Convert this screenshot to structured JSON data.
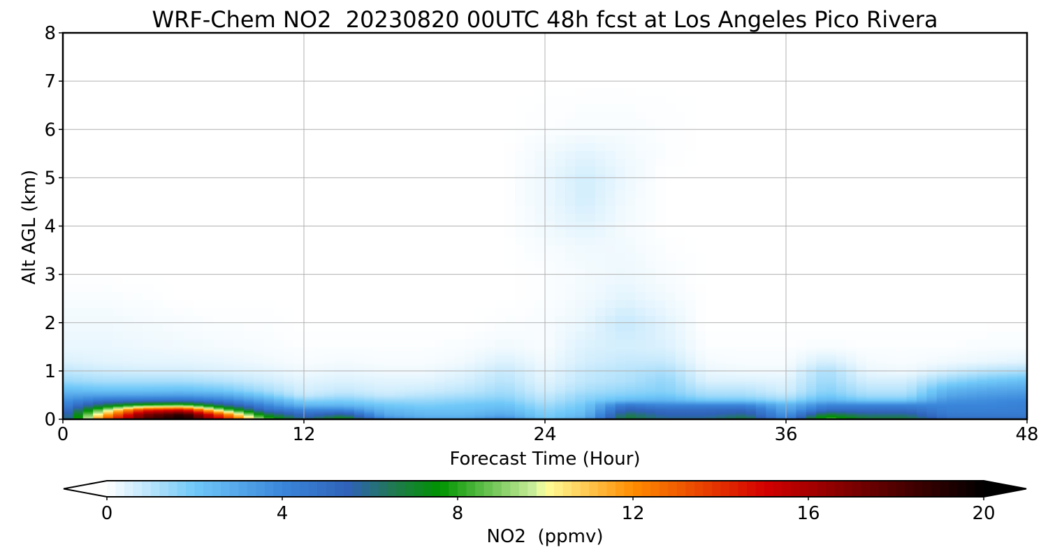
{
  "chart_data": {
    "type": "heatmap",
    "title": "WRF-Chem NO2  20230820 00UTC 48h fcst at Los Angeles Pico Rivera",
    "xlabel": "Forecast Time (Hour)",
    "ylabel": "Alt AGL (km)",
    "xlim": [
      0,
      48
    ],
    "ylim": [
      0,
      8
    ],
    "xticks": [
      0,
      12,
      24,
      36,
      48
    ],
    "yticks": [
      0,
      1,
      2,
      3,
      4,
      5,
      6,
      7,
      8
    ],
    "grid": true,
    "x": [
      0,
      2,
      4,
      6,
      8,
      10,
      12,
      14,
      16,
      18,
      20,
      22,
      24,
      26,
      28,
      30,
      32,
      34,
      36,
      38,
      40,
      42,
      44,
      46,
      48
    ],
    "y": [
      0,
      0.1,
      0.2,
      0.3,
      0.4,
      0.5,
      0.6,
      0.8,
      1.0,
      1.2,
      1.5,
      2.0,
      2.5,
      3.0,
      3.5,
      4.0,
      4.5,
      5.0,
      5.5,
      6.0,
      7.0,
      8.0
    ],
    "z": [
      [
        5,
        13,
        18,
        20,
        15,
        9,
        6,
        8,
        4,
        3,
        3,
        4,
        2,
        3,
        7,
        6,
        6,
        7,
        4,
        9,
        7,
        7,
        5,
        5,
        5
      ],
      [
        5,
        11,
        17,
        19,
        13,
        7,
        5,
        6,
        3,
        2.5,
        2.5,
        3,
        1.8,
        2.5,
        6.5,
        5.5,
        5.5,
        6,
        3.5,
        7,
        6,
        6,
        4.5,
        4.5,
        4.5
      ],
      [
        4.5,
        9,
        14,
        15,
        9,
        5,
        4,
        4,
        2.5,
        2.2,
        2.2,
        2.5,
        1.6,
        2.2,
        5.5,
        5,
        5,
        5.2,
        3,
        5,
        5,
        5,
        4.2,
        4.2,
        4.3
      ],
      [
        4,
        6.5,
        8,
        8.5,
        6,
        4,
        2.5,
        2.5,
        2,
        1.8,
        2,
        2.2,
        1.3,
        2,
        4.5,
        4,
        4,
        4,
        2.5,
        4,
        4,
        4,
        4,
        4,
        4.2
      ],
      [
        3.6,
        4.6,
        4.8,
        4.9,
        4.2,
        3,
        1.6,
        1.8,
        1.4,
        1.4,
        1.6,
        1.8,
        1,
        1.7,
        2.4,
        2.6,
        2,
        2,
        1.4,
        2.6,
        2,
        2,
        3.6,
        3.8,
        4
      ],
      [
        3,
        3.2,
        3.2,
        3.3,
        3,
        2,
        0.8,
        1.2,
        0.8,
        1,
        1.2,
        1.5,
        0.8,
        1.5,
        1.8,
        2,
        1.3,
        1.3,
        0.9,
        2,
        1.3,
        1.3,
        3,
        3.4,
        3.6
      ],
      [
        2.4,
        2.2,
        2.2,
        2.3,
        2,
        1.3,
        0.6,
        0.8,
        0.6,
        0.7,
        0.9,
        1.3,
        0.6,
        1.2,
        1.5,
        1.7,
        1,
        1,
        0.6,
        1.7,
        1,
        1,
        2.6,
        3,
        3.2
      ],
      [
        1.4,
        1.2,
        1.2,
        1.2,
        1,
        0.7,
        0.4,
        0.5,
        0.4,
        0.4,
        0.6,
        1,
        0.4,
        0.9,
        1.1,
        1.5,
        0.5,
        0.5,
        0.4,
        1.4,
        0.6,
        0.6,
        1.5,
        2,
        2.3
      ],
      [
        0.9,
        0.7,
        0.6,
        0.6,
        0.5,
        0.4,
        0.2,
        0.3,
        0.2,
        0.2,
        0.4,
        0.8,
        0.3,
        0.8,
        1,
        1.2,
        0.3,
        0.2,
        0.2,
        1.2,
        0.3,
        0.2,
        0.6,
        1,
        1.2
      ],
      [
        0.5,
        0.4,
        0.35,
        0.35,
        0.3,
        0.2,
        0.1,
        0.15,
        0.1,
        0.1,
        0.2,
        0.5,
        0.2,
        0.6,
        0.8,
        0.8,
        0.15,
        0.1,
        0.1,
        0.6,
        0.15,
        0.1,
        0.2,
        0.3,
        0.4
      ],
      [
        0.3,
        0.3,
        0.25,
        0.2,
        0.15,
        0.1,
        0.05,
        0.05,
        0.05,
        0.05,
        0.1,
        0.2,
        0.1,
        0.5,
        0.6,
        0.5,
        0.05,
        0.05,
        0.05,
        0.1,
        0.05,
        0.05,
        0.05,
        0.1,
        0.1
      ],
      [
        0.2,
        0.2,
        0.15,
        0.1,
        0.05,
        0.05,
        0,
        0,
        0,
        0,
        0,
        0.05,
        0.1,
        0.3,
        0.8,
        0.4,
        0,
        0,
        0,
        0,
        0,
        0,
        0,
        0,
        0
      ],
      [
        0.1,
        0.1,
        0.05,
        0,
        0,
        0,
        0,
        0,
        0,
        0,
        0,
        0,
        0.05,
        0.2,
        0.4,
        0.2,
        0,
        0,
        0,
        0,
        0,
        0,
        0,
        0,
        0
      ],
      [
        0,
        0,
        0,
        0,
        0,
        0,
        0,
        0,
        0,
        0,
        0,
        0,
        0.05,
        0.15,
        0.25,
        0.1,
        0,
        0,
        0,
        0,
        0,
        0,
        0,
        0,
        0
      ],
      [
        0,
        0,
        0,
        0,
        0,
        0,
        0,
        0,
        0,
        0,
        0,
        0,
        0.1,
        0.2,
        0.2,
        0.05,
        0,
        0,
        0,
        0,
        0,
        0,
        0,
        0,
        0
      ],
      [
        0,
        0,
        0,
        0,
        0,
        0,
        0,
        0,
        0,
        0,
        0,
        0,
        0.2,
        0.4,
        0.15,
        0,
        0,
        0,
        0,
        0,
        0,
        0,
        0,
        0,
        0
      ],
      [
        0,
        0,
        0,
        0,
        0,
        0,
        0,
        0,
        0,
        0,
        0,
        0,
        0.25,
        0.6,
        0.2,
        0,
        0,
        0,
        0,
        0,
        0,
        0,
        0,
        0,
        0
      ],
      [
        0,
        0,
        0,
        0,
        0,
        0,
        0,
        0,
        0,
        0,
        0,
        0,
        0.25,
        0.65,
        0.25,
        0,
        0,
        0,
        0,
        0,
        0,
        0,
        0,
        0,
        0
      ],
      [
        0,
        0,
        0,
        0,
        0,
        0,
        0,
        0,
        0,
        0,
        0,
        0,
        0.2,
        0.4,
        0.2,
        0.05,
        0,
        0,
        0,
        0,
        0,
        0,
        0,
        0,
        0
      ],
      [
        0,
        0,
        0,
        0,
        0,
        0,
        0,
        0,
        0,
        0,
        0,
        0,
        0.05,
        0.1,
        0.1,
        0.05,
        0,
        0,
        0,
        0,
        0,
        0,
        0,
        0,
        0
      ],
      [
        0,
        0,
        0,
        0,
        0,
        0,
        0,
        0,
        0,
        0,
        0,
        0,
        0,
        0,
        0,
        0,
        0,
        0,
        0,
        0,
        0,
        0,
        0,
        0,
        0
      ],
      [
        0,
        0,
        0,
        0,
        0,
        0,
        0,
        0,
        0,
        0,
        0,
        0,
        0,
        0,
        0,
        0,
        0,
        0,
        0,
        0,
        0,
        0,
        0,
        0,
        0
      ]
    ],
    "colorbar": {
      "label": "NO2  (ppmv)",
      "min": 0,
      "max": 20,
      "ticks": [
        0,
        4,
        8,
        12,
        16,
        20
      ],
      "extend": "both",
      "extend_min_color": "#ffffff",
      "extend_max_color": "#000000",
      "stops": [
        {
          "v": 0,
          "c": "#ffffff"
        },
        {
          "v": 2,
          "c": "#70c8f8"
        },
        {
          "v": 4,
          "c": "#3a86da"
        },
        {
          "v": 5.5,
          "c": "#2f62b8"
        },
        {
          "v": 6.6,
          "c": "#1e7a4a"
        },
        {
          "v": 7.6,
          "c": "#009400"
        },
        {
          "v": 9.8,
          "c": "#d0f0a0"
        },
        {
          "v": 10,
          "c": "#ffff9a"
        },
        {
          "v": 12,
          "c": "#ff8c00"
        },
        {
          "v": 15,
          "c": "#d40000"
        },
        {
          "v": 18,
          "c": "#500000"
        },
        {
          "v": 20,
          "c": "#000000"
        }
      ]
    }
  }
}
